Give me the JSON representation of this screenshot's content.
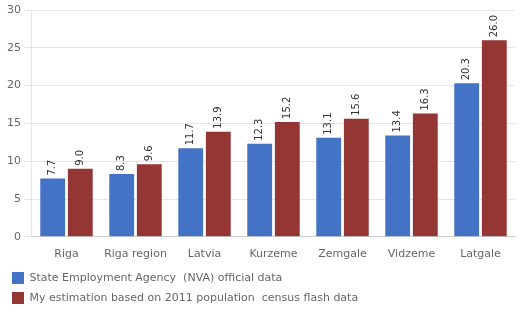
{
  "chart_data": {
    "type": "bar",
    "categories": [
      "Riga",
      "Riga region",
      "Latvia",
      "Kurzeme",
      "Zemgale",
      "Vidzeme",
      "Latgale"
    ],
    "series": [
      {
        "name": "State Employment Agency  (NVA) official data",
        "color": "#4472C4",
        "values": [
          7.7,
          8.3,
          11.7,
          12.3,
          13.1,
          13.4,
          20.3
        ]
      },
      {
        "name": "My estimation based on 2011 population  census flash data",
        "color": "#943634",
        "values": [
          9.0,
          9.6,
          13.9,
          15.2,
          15.6,
          16.3,
          26.0
        ],
        "value_labels": [
          "9.0",
          "9.6",
          "13.9",
          "15.2",
          "15.6",
          "16.3",
          "26.0"
        ]
      }
    ],
    "ylim": [
      0,
      30
    ],
    "yticks": [
      0,
      5,
      10,
      15,
      20,
      25,
      30
    ],
    "grid": true,
    "legend": "bottom",
    "data_labels": true
  }
}
